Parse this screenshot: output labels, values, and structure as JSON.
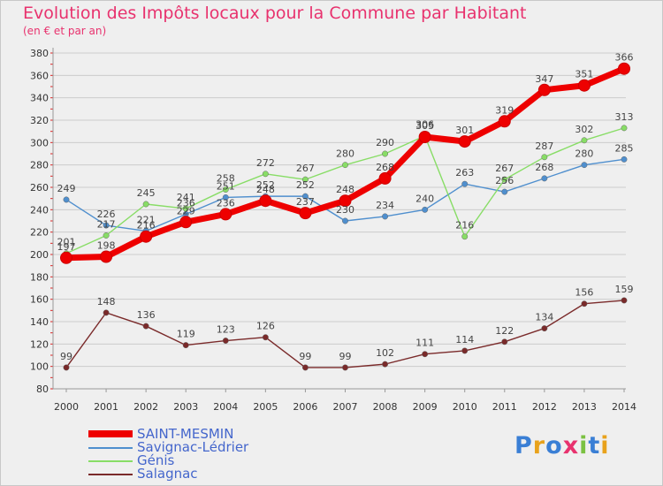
{
  "title": "Evolution des Impôts locaux pour la Commune par Habitant",
  "subtitle": "(en € et par an)",
  "logo": {
    "text": "Proxiti",
    "colors": [
      "#3a7fd5",
      "#e8a21c",
      "#3a7fd5",
      "#e8326e",
      "#7bc142",
      "#3a7fd5",
      "#e8a21c"
    ]
  },
  "chart_data": {
    "type": "line",
    "title": "Evolution des Impôts locaux pour la Commune par Habitant",
    "subtitle": "(en € et par an)",
    "xlabel": "",
    "ylabel": "",
    "ylim": [
      80,
      380
    ],
    "yticks": [
      80,
      100,
      120,
      140,
      160,
      180,
      200,
      220,
      240,
      260,
      280,
      300,
      320,
      340,
      360,
      380
    ],
    "categories": [
      "2000",
      "2001",
      "2002",
      "2003",
      "2004",
      "2005",
      "2006",
      "2007",
      "2008",
      "2009",
      "2010",
      "2011",
      "2012",
      "2013",
      "2014"
    ],
    "grid": "horizontal",
    "legend_position": "bottom-left",
    "series": [
      {
        "name": "SAINT-MESMIN",
        "color": "#ee0000",
        "values": [
          197,
          198,
          216,
          229,
          236,
          248,
          237,
          248,
          268,
          305,
          301,
          319,
          347,
          351,
          366
        ]
      },
      {
        "name": "Savignac-Lédrier",
        "color": "#4f8fce",
        "values": [
          249,
          226,
          221,
          236,
          251,
          252,
          252,
          230,
          234,
          240,
          263,
          256,
          268,
          280,
          285
        ]
      },
      {
        "name": "Génis",
        "color": "#88dd66",
        "values": [
          201,
          217,
          245,
          241,
          258,
          272,
          267,
          280,
          290,
          306,
          216,
          267,
          287,
          302,
          313
        ]
      },
      {
        "name": "Salagnac",
        "color": "#7a2a2a",
        "values": [
          99,
          148,
          136,
          119,
          123,
          126,
          99,
          99,
          102,
          111,
          114,
          122,
          134,
          156,
          159
        ]
      }
    ]
  }
}
